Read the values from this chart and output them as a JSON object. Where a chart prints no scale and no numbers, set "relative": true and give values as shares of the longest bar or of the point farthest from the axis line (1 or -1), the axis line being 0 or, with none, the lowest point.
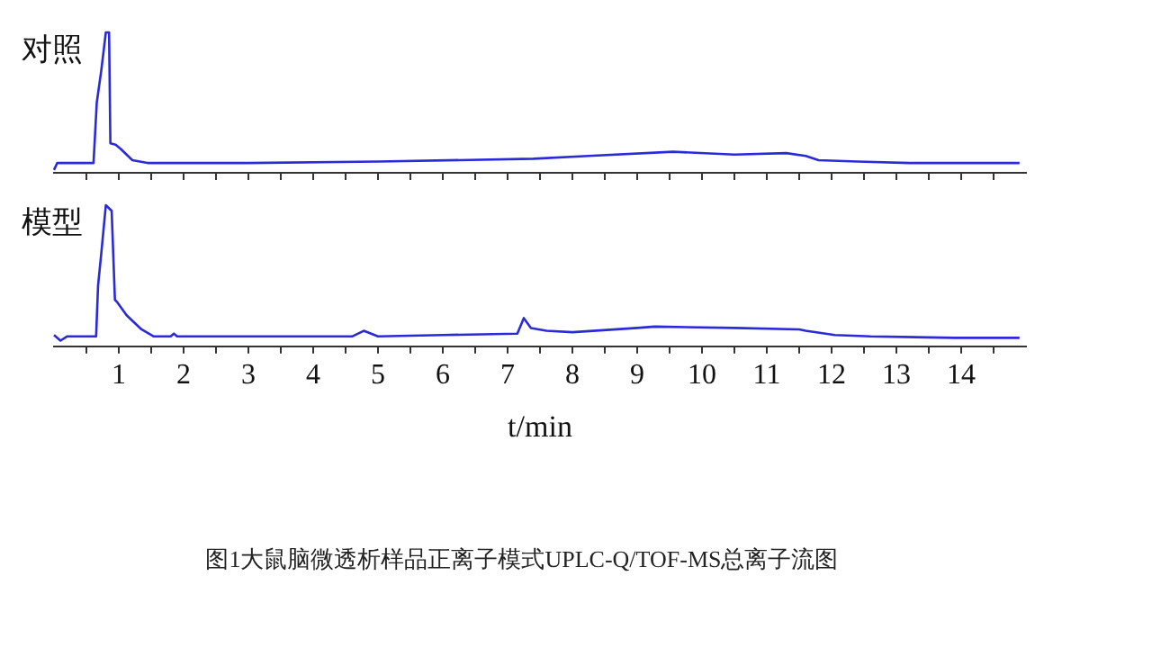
{
  "chart_data": [
    {
      "type": "line",
      "title": "对照",
      "relative": true,
      "xlim": [
        0,
        15
      ],
      "tick_labels": false,
      "grid": false,
      "legend": false,
      "marker": "none",
      "xticks": [
        {
          "value": 0.5,
          "label": null
        },
        1,
        {
          "value": 1.5,
          "label": null
        },
        2,
        {
          "value": 2.5,
          "label": null
        },
        3,
        {
          "value": 3.5,
          "label": null
        },
        4,
        {
          "value": 4.5,
          "label": null
        },
        5,
        {
          "value": 5.5,
          "label": null
        },
        6,
        {
          "value": 6.5,
          "label": null
        },
        7,
        {
          "value": 7.5,
          "label": null
        },
        8,
        {
          "value": 8.5,
          "label": null
        },
        9,
        {
          "value": 9.5,
          "label": null
        },
        10,
        {
          "value": 10.5,
          "label": null
        },
        11,
        {
          "value": 11.5,
          "label": null
        },
        12,
        {
          "value": 12.5,
          "label": null
        },
        13,
        {
          "value": 13.5,
          "label": null
        },
        14,
        {
          "value": 14.5,
          "label": null
        }
      ],
      "series": [
        {
          "color": "#2a2ad8",
          "x": [
            0,
            0.05,
            0.61,
            0.66,
            0.73,
            0.8,
            0.85,
            0.87,
            0.95,
            1.03,
            1.21,
            1.44,
            3,
            5,
            7.4,
            8.25,
            9.55,
            10.5,
            11.3,
            11.6,
            11.8,
            12.4,
            13.2,
            14.9
          ],
          "values": [
            0.02,
            0.07,
            0.07,
            0.5,
            0.73,
            1,
            1,
            0.21,
            0.2,
            0.17,
            0.09,
            0.07,
            0.07,
            0.08,
            0.1,
            0.12,
            0.15,
            0.13,
            0.14,
            0.12,
            0.09,
            0.08,
            0.07,
            0.07
          ]
        }
      ]
    },
    {
      "type": "line",
      "title": "模型",
      "relative": true,
      "xlim": [
        0,
        15
      ],
      "tick_labels": "x",
      "grid": false,
      "legend": false,
      "marker": "none",
      "xlabel": "t/min",
      "annotations": [
        "图1大鼠脑微透析样品正离子模式UPLC-Q/TOF-MS总离子流图"
      ],
      "xticks": [
        {
          "value": 0.5,
          "label": null
        },
        1,
        {
          "value": 1.5,
          "label": null
        },
        2,
        {
          "value": 2.5,
          "label": null
        },
        3,
        {
          "value": 3.5,
          "label": null
        },
        4,
        {
          "value": 4.5,
          "label": null
        },
        5,
        {
          "value": 5.5,
          "label": null
        },
        6,
        {
          "value": 6.5,
          "label": null
        },
        7,
        {
          "value": 7.5,
          "label": null
        },
        8,
        {
          "value": 8.5,
          "label": null
        },
        9,
        {
          "value": 9.5,
          "label": null
        },
        10,
        {
          "value": 10.5,
          "label": null
        },
        11,
        {
          "value": 11.5,
          "label": null
        },
        12,
        {
          "value": 12.5,
          "label": null
        },
        13,
        {
          "value": 13.5,
          "label": null
        },
        14,
        {
          "value": 14.5,
          "label": null
        }
      ],
      "series": [
        {
          "color": "#2a2ad8",
          "x": [
            0,
            0.1,
            0.2,
            0.65,
            0.68,
            0.73,
            0.8,
            0.89,
            0.94,
            0.98,
            1.12,
            1.35,
            1.54,
            1.8,
            1.85,
            1.9,
            4.6,
            4.78,
            5.0,
            6.0,
            7.15,
            7.25,
            7.36,
            7.6,
            8.0,
            9.0,
            9.27,
            10.5,
            11.5,
            11.6,
            12.05,
            12.6,
            13.9,
            14.9
          ],
          "values": [
            0.08,
            0.04,
            0.07,
            0.07,
            0.43,
            0.66,
            1,
            0.96,
            0.33,
            0.31,
            0.22,
            0.12,
            0.07,
            0.07,
            0.09,
            0.07,
            0.07,
            0.11,
            0.07,
            0.08,
            0.09,
            0.2,
            0.13,
            0.11,
            0.1,
            0.13,
            0.14,
            0.13,
            0.12,
            0.11,
            0.08,
            0.07,
            0.06,
            0.06
          ]
        }
      ]
    }
  ]
}
